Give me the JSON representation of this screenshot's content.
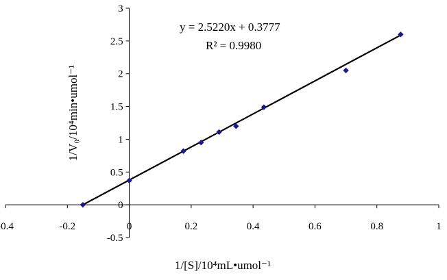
{
  "chart_data": {
    "type": "scatter",
    "xlim": [
      -0.4,
      1
    ],
    "ylim": [
      -0.5,
      3
    ],
    "x_ticks": [
      -0.4,
      -0.2,
      0,
      0.2,
      0.4,
      0.6,
      0.8,
      1
    ],
    "y_ticks": [
      -0.5,
      0,
      0.5,
      1,
      1.5,
      2,
      2.5,
      3
    ],
    "x_tick_labels": [
      "-0.4",
      "-0.2",
      "0",
      "0.2",
      "0.4",
      "0.6",
      "0.8",
      "1"
    ],
    "y_tick_labels": [
      "-0.5",
      "0",
      "0.5",
      "1",
      "1.5",
      "2",
      "2.5",
      "3"
    ],
    "xlabel": "1/[S]/10⁴mL•umol⁻¹",
    "ylabel": "1/V₀/10⁴min•umol⁻¹",
    "grid": false,
    "marker_color": "#1a1a8c",
    "line_color": "#000000",
    "points": [
      {
        "x": -0.15,
        "y": 0.0
      },
      {
        "x": 0.0,
        "y": 0.37
      },
      {
        "x": 0.175,
        "y": 0.82
      },
      {
        "x": 0.232,
        "y": 0.95
      },
      {
        "x": 0.29,
        "y": 1.11
      },
      {
        "x": 0.345,
        "y": 1.2
      },
      {
        "x": 0.435,
        "y": 1.49
      },
      {
        "x": 0.7,
        "y": 2.05
      },
      {
        "x": 0.877,
        "y": 2.6
      }
    ],
    "trendline": {
      "slope": 2.522,
      "intercept": 0.3777,
      "x_range": [
        -0.15,
        0.877
      ],
      "equation_text": "y = 2.5220x + 0.3777",
      "r2_text": "R² = 0.9980"
    }
  }
}
